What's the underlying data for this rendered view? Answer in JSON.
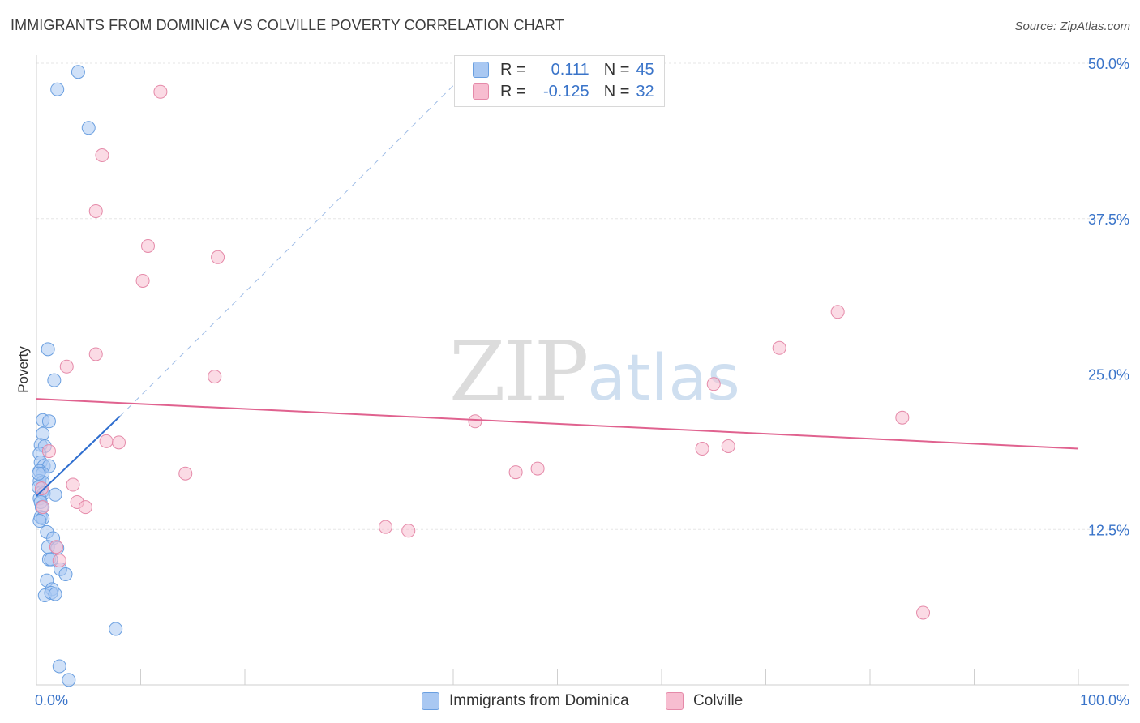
{
  "title": "IMMIGRANTS FROM DOMINICA VS COLVILLE POVERTY CORRELATION CHART",
  "source": "Source: ZipAtlas.com",
  "watermark": {
    "zip": "ZIP",
    "atlas": "atlas"
  },
  "legend": {
    "rows": [
      {
        "r_label": "R =",
        "r_value": "0.111",
        "n_label": "N =",
        "n_value": "45"
      },
      {
        "r_label": "R =",
        "r_value": "-0.125",
        "n_label": "N =",
        "n_value": "32"
      }
    ]
  },
  "colors": {
    "blue_fill": "#a9c8f2",
    "blue_stroke": "#6a9fe0",
    "blue_line": "#2f6ecf",
    "pink_fill": "#f7bdd0",
    "pink_stroke": "#e58aa9",
    "pink_line": "#e0628f",
    "axis_label": "#3a74c9"
  },
  "chart_data": {
    "type": "scatter",
    "title": "IMMIGRANTS FROM DOMINICA VS COLVILLE POVERTY CORRELATION CHART",
    "xlabel": "",
    "ylabel": "Poverty",
    "xlim": [
      0,
      100
    ],
    "ylim": [
      0,
      50
    ],
    "x_tick_labels": [
      "0.0%",
      "100.0%"
    ],
    "y_ticks": [
      12.5,
      25.0,
      37.5,
      50.0
    ],
    "y_tick_labels": [
      "12.5%",
      "25.0%",
      "37.5%",
      "50.0%"
    ],
    "series": [
      {
        "name": "Immigrants from Dominica",
        "r": 0.111,
        "n": 45,
        "trend": {
          "x": [
            0.0,
            8.0
          ],
          "y": [
            15.2,
            21.6
          ],
          "dashed_extension_to": [
            40.0,
            48.2
          ]
        },
        "points": [
          {
            "x": 4.0,
            "y": 49.3
          },
          {
            "x": 2.0,
            "y": 47.9
          },
          {
            "x": 5.0,
            "y": 44.8
          },
          {
            "x": 1.1,
            "y": 27.0
          },
          {
            "x": 1.7,
            "y": 24.5
          },
          {
            "x": 0.6,
            "y": 21.3
          },
          {
            "x": 1.2,
            "y": 21.2
          },
          {
            "x": 0.6,
            "y": 20.2
          },
          {
            "x": 0.4,
            "y": 19.3
          },
          {
            "x": 0.8,
            "y": 19.2
          },
          {
            "x": 0.3,
            "y": 18.6
          },
          {
            "x": 0.4,
            "y": 17.9
          },
          {
            "x": 0.7,
            "y": 17.6
          },
          {
            "x": 1.2,
            "y": 17.6
          },
          {
            "x": 0.3,
            "y": 17.2
          },
          {
            "x": 0.6,
            "y": 17.0
          },
          {
            "x": 0.3,
            "y": 16.4
          },
          {
            "x": 0.6,
            "y": 16.3
          },
          {
            "x": 0.2,
            "y": 15.9
          },
          {
            "x": 0.5,
            "y": 15.5
          },
          {
            "x": 0.7,
            "y": 15.4
          },
          {
            "x": 1.8,
            "y": 15.3
          },
          {
            "x": 0.3,
            "y": 15.0
          },
          {
            "x": 0.4,
            "y": 14.7
          },
          {
            "x": 0.5,
            "y": 14.3
          },
          {
            "x": 0.4,
            "y": 13.5
          },
          {
            "x": 0.6,
            "y": 13.4
          },
          {
            "x": 0.3,
            "y": 13.2
          },
          {
            "x": 1.0,
            "y": 12.3
          },
          {
            "x": 1.6,
            "y": 11.8
          },
          {
            "x": 1.1,
            "y": 11.1
          },
          {
            "x": 2.0,
            "y": 11.0
          },
          {
            "x": 1.2,
            "y": 10.1
          },
          {
            "x": 1.4,
            "y": 10.1
          },
          {
            "x": 2.3,
            "y": 9.3
          },
          {
            "x": 2.8,
            "y": 8.9
          },
          {
            "x": 1.0,
            "y": 8.4
          },
          {
            "x": 1.5,
            "y": 7.7
          },
          {
            "x": 0.8,
            "y": 7.2
          },
          {
            "x": 1.4,
            "y": 7.4
          },
          {
            "x": 1.8,
            "y": 7.3
          },
          {
            "x": 7.6,
            "y": 4.5
          },
          {
            "x": 2.2,
            "y": 1.5
          },
          {
            "x": 3.1,
            "y": 0.4
          },
          {
            "x": 0.2,
            "y": 17.0
          }
        ]
      },
      {
        "name": "Colville",
        "r": -0.125,
        "n": 32,
        "trend": {
          "x": [
            0.0,
            100.0
          ],
          "y": [
            23.0,
            19.0
          ]
        },
        "points": [
          {
            "x": 11.9,
            "y": 47.7
          },
          {
            "x": 6.3,
            "y": 42.6
          },
          {
            "x": 5.7,
            "y": 38.1
          },
          {
            "x": 10.7,
            "y": 35.3
          },
          {
            "x": 17.4,
            "y": 34.4
          },
          {
            "x": 10.2,
            "y": 32.5
          },
          {
            "x": 76.9,
            "y": 30.0
          },
          {
            "x": 71.3,
            "y": 27.1
          },
          {
            "x": 5.7,
            "y": 26.6
          },
          {
            "x": 2.9,
            "y": 25.6
          },
          {
            "x": 17.1,
            "y": 24.8
          },
          {
            "x": 65.0,
            "y": 24.2
          },
          {
            "x": 83.1,
            "y": 21.5
          },
          {
            "x": 42.1,
            "y": 21.2
          },
          {
            "x": 6.7,
            "y": 19.6
          },
          {
            "x": 7.9,
            "y": 19.5
          },
          {
            "x": 66.4,
            "y": 19.2
          },
          {
            "x": 63.9,
            "y": 19.0
          },
          {
            "x": 1.2,
            "y": 18.8
          },
          {
            "x": 48.1,
            "y": 17.4
          },
          {
            "x": 46.0,
            "y": 17.1
          },
          {
            "x": 14.3,
            "y": 17.0
          },
          {
            "x": 3.5,
            "y": 16.1
          },
          {
            "x": 0.5,
            "y": 15.8
          },
          {
            "x": 3.9,
            "y": 14.7
          },
          {
            "x": 4.7,
            "y": 14.3
          },
          {
            "x": 0.6,
            "y": 14.3
          },
          {
            "x": 33.5,
            "y": 12.7
          },
          {
            "x": 35.7,
            "y": 12.4
          },
          {
            "x": 1.9,
            "y": 11.1
          },
          {
            "x": 2.2,
            "y": 10.0
          },
          {
            "x": 85.1,
            "y": 5.8
          }
        ]
      }
    ]
  }
}
